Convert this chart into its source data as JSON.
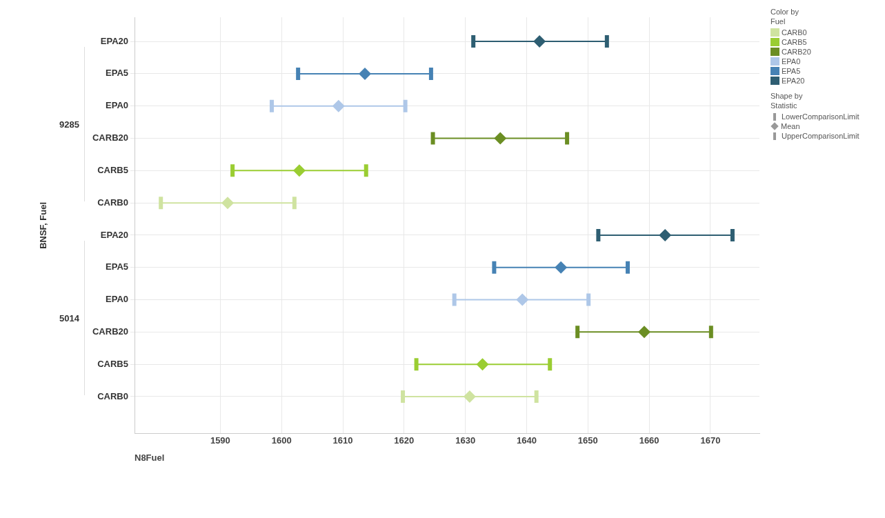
{
  "chart_data": {
    "type": "scatter",
    "orientation": "horizontal",
    "xlabel": "N8Fuel",
    "ylabel": "BNSF, Fuel",
    "legend_title": "Color by Fuel",
    "legend": "right",
    "grid": true,
    "marker": "diamond",
    "categories": [
      "EPA20",
      "EPA5",
      "EPA0",
      "CARB20",
      "CARB5",
      "CARB0",
      "EPA20",
      "EPA5",
      "EPA0",
      "CARB20",
      "CARB5",
      "CARB0"
    ],
    "xlim": [
      1576,
      1678
    ],
    "xticks": [
      1590,
      1600,
      1610,
      1620,
      1630,
      1640,
      1650,
      1660,
      1670
    ],
    "annotations": [
      "9285",
      "5014",
      "Shape by Statistic",
      "LowerComparisonLimit",
      "Mean",
      "UpperComparisonLimit"
    ],
    "series": [
      {
        "name": "CARB0",
        "color": "#cfe3a0",
        "values": [
          null,
          null,
          null,
          null,
          null,
          1591.2,
          null,
          null,
          null,
          null,
          null,
          1630.7
        ],
        "errors": [
          null,
          null,
          null,
          null,
          null,
          [
            1580.3,
            1602.1
          ],
          null,
          null,
          null,
          null,
          null,
          [
            1619.8,
            1641.6
          ]
        ]
      },
      {
        "name": "CARB5",
        "color": "#9acd32",
        "values": [
          null,
          null,
          null,
          null,
          1602.9,
          null,
          null,
          null,
          null,
          null,
          1632.8,
          null
        ],
        "errors": [
          null,
          null,
          null,
          null,
          [
            1592.0,
            1613.8
          ],
          null,
          null,
          null,
          null,
          null,
          [
            1622.0,
            1643.8
          ],
          null
        ]
      },
      {
        "name": "CARB20",
        "color": "#6b8e23",
        "values": [
          null,
          null,
          null,
          1635.7,
          null,
          null,
          null,
          null,
          null,
          1659.2,
          null,
          null
        ],
        "errors": [
          null,
          null,
          null,
          [
            1624.7,
            1646.6
          ],
          null,
          null,
          null,
          null,
          null,
          [
            1648.3,
            1670.1
          ],
          null,
          null
        ]
      },
      {
        "name": "EPA0",
        "color": "#aec7e8",
        "values": [
          null,
          null,
          1609.3,
          null,
          null,
          null,
          null,
          null,
          1639.3,
          null,
          null,
          null
        ],
        "errors": [
          null,
          null,
          [
            1598.4,
            1620.2
          ],
          null,
          null,
          null,
          null,
          null,
          [
            1628.2,
            1650.1
          ],
          null,
          null,
          null
        ]
      },
      {
        "name": "EPA5",
        "color": "#4682b4",
        "values": [
          null,
          1613.6,
          null,
          null,
          null,
          null,
          null,
          1645.6,
          null,
          null,
          null,
          null
        ],
        "errors": [
          null,
          [
            1602.7,
            1624.4
          ],
          null,
          null,
          null,
          null,
          null,
          [
            1634.7,
            1656.5
          ],
          null,
          null,
          null,
          null
        ]
      },
      {
        "name": "EPA20",
        "color": "#2e5e72",
        "values": [
          1642.1,
          null,
          null,
          null,
          null,
          null,
          1662.6,
          null,
          null,
          null,
          null,
          null
        ],
        "errors": [
          [
            1631.3,
            1653.1
          ],
          null,
          null,
          null,
          null,
          null,
          [
            1651.7,
            1673.6
          ],
          null,
          null,
          null,
          null,
          null
        ]
      }
    ]
  }
}
